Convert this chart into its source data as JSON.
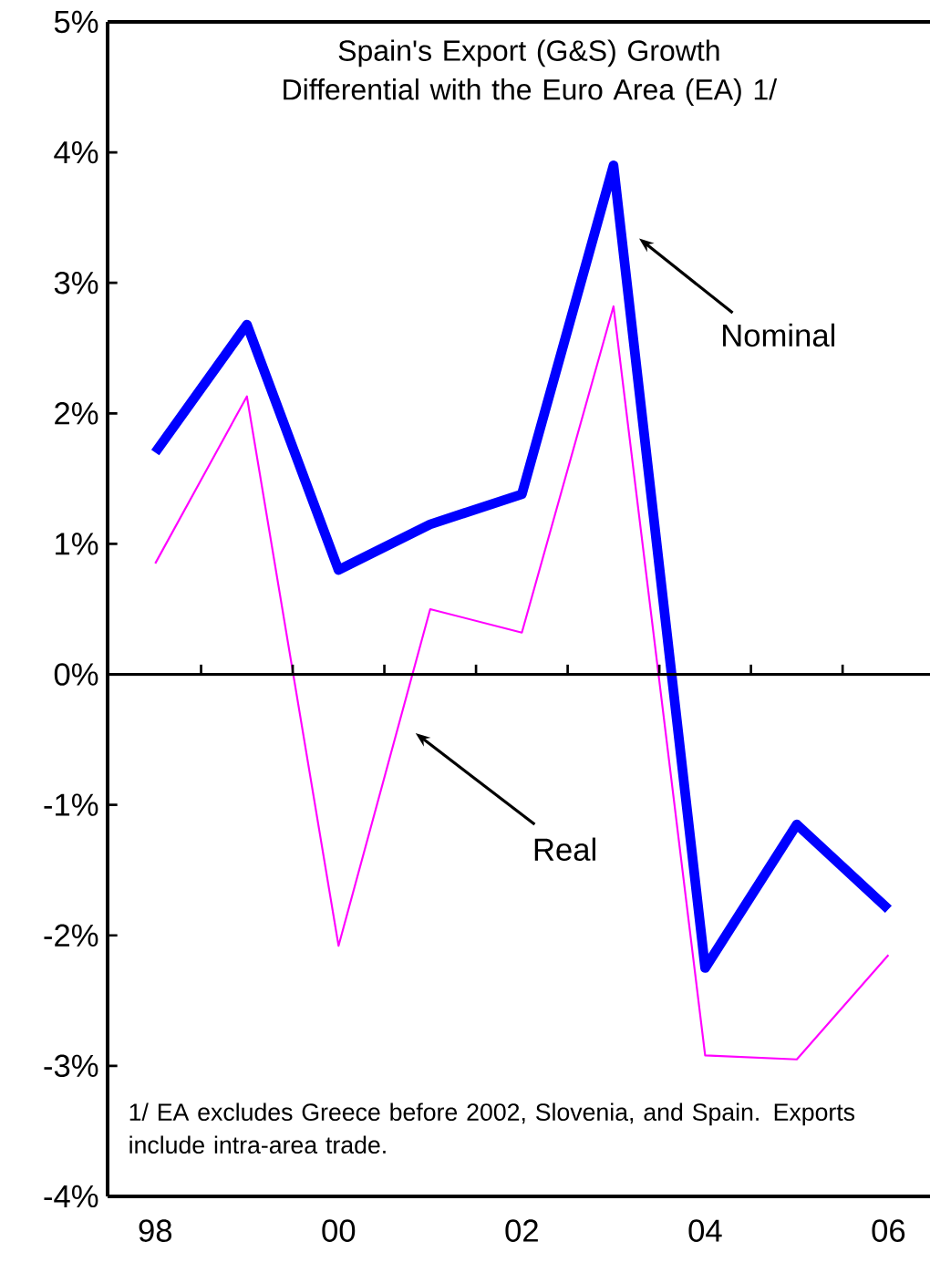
{
  "chart_data": {
    "type": "line",
    "title": "Spain's Export (G&S) Growth Differential with the Euro Area (EA) 1/",
    "categories": [
      "98",
      null,
      "00",
      null,
      "02",
      null,
      "04",
      null,
      "06"
    ],
    "series": [
      {
        "name": "Nominal",
        "color": "#0000ff",
        "values": [
          1.7,
          2.68,
          0.8,
          1.15,
          1.38,
          3.9,
          -2.25,
          -1.15,
          -1.8
        ]
      },
      {
        "name": "Real",
        "color": "#ff00ff",
        "values": [
          0.85,
          2.13,
          -2.08,
          0.5,
          0.32,
          2.82,
          -2.92,
          -2.95,
          -2.15
        ]
      }
    ],
    "ylim": [
      -4,
      5
    ],
    "yticks": [
      {
        "value": -4,
        "label": "-4%"
      },
      {
        "value": -3,
        "label": "-3%"
      },
      {
        "value": -2,
        "label": "-2%"
      },
      {
        "value": -1,
        "label": "-1%"
      },
      {
        "value": 0,
        "label": "0%"
      },
      {
        "value": 1,
        "label": "1%"
      },
      {
        "value": 2,
        "label": "2%"
      },
      {
        "value": 3,
        "label": "3%"
      },
      {
        "value": 4,
        "label": "4%"
      },
      {
        "value": 5,
        "label": "5%"
      }
    ],
    "ref_lines": [
      {
        "axis": "y",
        "value": 0,
        "color": "#000000"
      }
    ],
    "annotations": [
      "1/ EA excludes Greece before 2002, Slovenia, and Spain. Exports include intra-area trade."
    ]
  }
}
